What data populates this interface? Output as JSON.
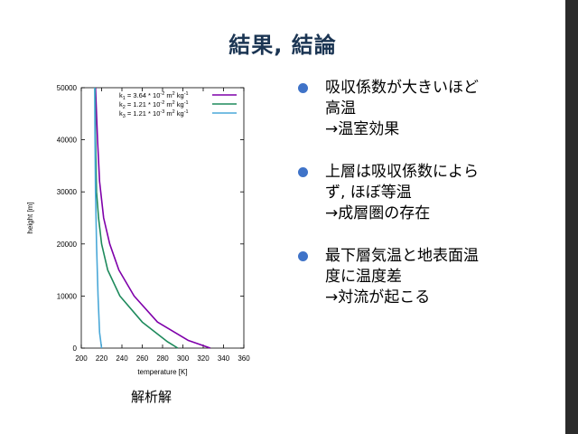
{
  "slide": {
    "title": "結果, 結論",
    "caption": "解析解"
  },
  "bullets": [
    {
      "lines": [
        "吸収係数が大きいほど",
        "高温"
      ],
      "sub": "→温室効果"
    },
    {
      "lines": [
        "上層は吸収係数によら",
        "ず, ほぼ等温"
      ],
      "sub": "→成層圏の存在"
    },
    {
      "lines": [
        "最下層気温と地表面温",
        "度に温度差"
      ],
      "sub": "→対流が起こる"
    }
  ],
  "colors": {
    "title": "#1b3553",
    "bullet": "#3f73c8",
    "k1": "#7f00aa",
    "k2": "#1e8a5c",
    "k3": "#4aa8d8"
  },
  "chart_data": {
    "type": "line",
    "xlabel": "temperature [K]",
    "ylabel": "height [m]",
    "xlim": [
      200,
      360
    ],
    "ylim": [
      0,
      50000
    ],
    "xticks": [
      "200",
      "220",
      "240",
      "260",
      "280",
      "300",
      "320",
      "340",
      "360"
    ],
    "yticks": [
      "0",
      "10000",
      "20000",
      "30000",
      "40000",
      "50000"
    ],
    "grid": false,
    "legend_position": "top-right",
    "series": [
      {
        "name": "k1 = 3.64 * 10^-2 m^2 kg^-1",
        "legend": {
          "base": "k",
          "sub": "1",
          "mid1": " = 3.64 * 10",
          "exp": "-2",
          "mid2": " m",
          "exp2": "2",
          "mid3": " kg",
          "exp3": "-1"
        },
        "x": [
          214,
          216,
          218,
          222,
          228,
          237,
          252,
          275,
          305,
          327
        ],
        "y": [
          50000,
          40000,
          32000,
          25000,
          20000,
          15000,
          10000,
          5000,
          1500,
          0
        ]
      },
      {
        "name": "k2 = 1.21 * 10^-2 m^2 kg^-1",
        "legend": {
          "base": "k",
          "sub": "2",
          "mid1": " = 1.21 * 10",
          "exp": "-2",
          "mid2": " m",
          "exp2": "2",
          "mid3": " kg",
          "exp3": "-1"
        },
        "x": [
          213.5,
          214,
          215,
          217,
          220,
          226,
          238,
          260,
          285,
          295
        ],
        "y": [
          50000,
          40000,
          30000,
          25000,
          20000,
          15000,
          10000,
          5000,
          1200,
          0
        ]
      },
      {
        "name": "k3 = 1.21 * 10^-3 m^2 kg^-1",
        "legend": {
          "base": "k",
          "sub": "3",
          "mid1": " = 1.21 * 10",
          "exp": "-3",
          "mid2": " m",
          "exp2": "2",
          "mid3": " kg",
          "exp3": "-1"
        },
        "x": [
          213.2,
          213.5,
          214,
          215,
          216.5,
          218,
          220
        ],
        "y": [
          50000,
          40000,
          30000,
          20000,
          10000,
          3000,
          0
        ]
      }
    ]
  }
}
